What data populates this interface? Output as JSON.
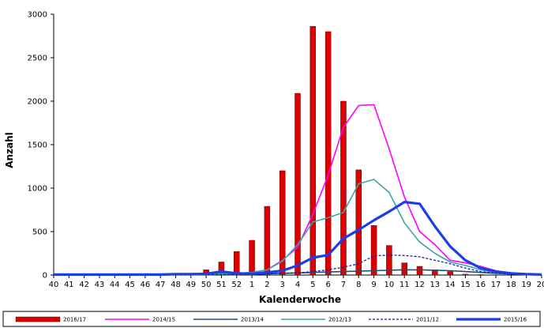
{
  "chart_data": {
    "type": "bar",
    "title": "",
    "xlabel": "Kalenderwoche",
    "ylabel": "Anzahl",
    "ylim": [
      0,
      3000
    ],
    "yticks": [
      0,
      500,
      1000,
      1500,
      2000,
      2500,
      3000
    ],
    "grid": false,
    "legend_position": "bottom",
    "categories": [
      "40",
      "41",
      "42",
      "43",
      "44",
      "45",
      "46",
      "47",
      "48",
      "49",
      "50",
      "51",
      "52",
      "1",
      "2",
      "3",
      "4",
      "5",
      "6",
      "7",
      "8",
      "9",
      "10",
      "11",
      "12",
      "13",
      "14",
      "15",
      "16",
      "17",
      "18",
      "19",
      "20"
    ],
    "series": [
      {
        "name": "2016/17",
        "kind": "bar",
        "color": "#dd0000",
        "style": "solid",
        "values": [
          0,
          0,
          0,
          0,
          0,
          0,
          0,
          0,
          0,
          0,
          60,
          150,
          270,
          400,
          790,
          1200,
          2090,
          2860,
          2800,
          2000,
          1210,
          570,
          340,
          140,
          100,
          60,
          40,
          10,
          5,
          0,
          0,
          0,
          0
        ]
      },
      {
        "name": "2014/15",
        "kind": "line",
        "color": "#ff00ff",
        "style": "solid",
        "values": [
          5,
          5,
          5,
          5,
          5,
          5,
          5,
          5,
          5,
          5,
          10,
          15,
          20,
          30,
          60,
          170,
          320,
          700,
          1150,
          1700,
          1950,
          1960,
          1450,
          900,
          500,
          350,
          170,
          140,
          100,
          50,
          20,
          10,
          5
        ]
      },
      {
        "name": "2013/14",
        "kind": "line",
        "color": "#1f4e79",
        "style": "solid",
        "values": [
          5,
          5,
          5,
          5,
          5,
          5,
          5,
          5,
          5,
          5,
          5,
          5,
          5,
          10,
          15,
          20,
          25,
          30,
          35,
          40,
          45,
          50,
          55,
          60,
          60,
          55,
          50,
          40,
          30,
          20,
          15,
          10,
          5
        ]
      },
      {
        "name": "2012/13",
        "kind": "line",
        "color": "#3aa6a6",
        "style": "solid",
        "values": [
          5,
          5,
          5,
          5,
          5,
          5,
          5,
          5,
          5,
          5,
          10,
          15,
          20,
          30,
          60,
          160,
          350,
          610,
          660,
          720,
          1050,
          1100,
          950,
          600,
          380,
          250,
          150,
          110,
          60,
          30,
          15,
          10,
          5
        ]
      },
      {
        "name": "2011/12",
        "kind": "line",
        "color": "#1a1aa0",
        "style": "dashed",
        "values": [
          0,
          0,
          0,
          0,
          0,
          0,
          0,
          0,
          0,
          0,
          5,
          5,
          5,
          10,
          15,
          20,
          25,
          40,
          60,
          90,
          130,
          220,
          230,
          225,
          210,
          170,
          130,
          80,
          40,
          20,
          10,
          5,
          0
        ]
      },
      {
        "name": "2015/16",
        "kind": "line",
        "color": "#1a3ee8",
        "style": "bold",
        "values": [
          5,
          5,
          5,
          5,
          5,
          5,
          5,
          5,
          10,
          10,
          15,
          40,
          20,
          15,
          30,
          50,
          110,
          200,
          230,
          420,
          520,
          630,
          730,
          840,
          820,
          560,
          330,
          170,
          80,
          40,
          20,
          10,
          5
        ]
      }
    ]
  }
}
